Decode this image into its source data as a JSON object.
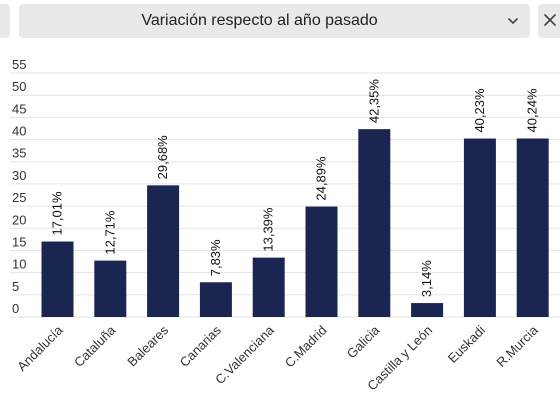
{
  "header": {
    "selector_value": "Variación respecto al año pasado",
    "chevron_icon": "chevron-down-icon",
    "close_icon": "close-icon"
  },
  "colors": {
    "bar": "#1b2552",
    "grid": "#e4e4e4",
    "axis_text": "#333333",
    "control_bg": "#e9e9e9"
  },
  "chart_data": {
    "type": "bar",
    "categories": [
      "Andalucía",
      "Cataluña",
      "Baleares",
      "Canarias",
      "C.Valenciana",
      "C.Madrid",
      "Galicia",
      "Castilla y León",
      "Euskadi",
      "R.Murcia"
    ],
    "values": [
      17.01,
      12.71,
      29.68,
      7.83,
      13.39,
      24.89,
      42.35,
      3.14,
      40.23,
      40.24
    ],
    "data_labels": [
      "17,01%",
      "12,71%",
      "29,68%",
      "7,83%",
      "13,39%",
      "24,89%",
      "42,35%",
      "3,14%",
      "40,23%",
      "40,24%"
    ],
    "yticks": [
      0,
      5,
      10,
      15,
      20,
      25,
      30,
      35,
      40,
      45,
      50,
      55
    ],
    "ylim": [
      0,
      55
    ],
    "grid": true,
    "legend": "none"
  }
}
